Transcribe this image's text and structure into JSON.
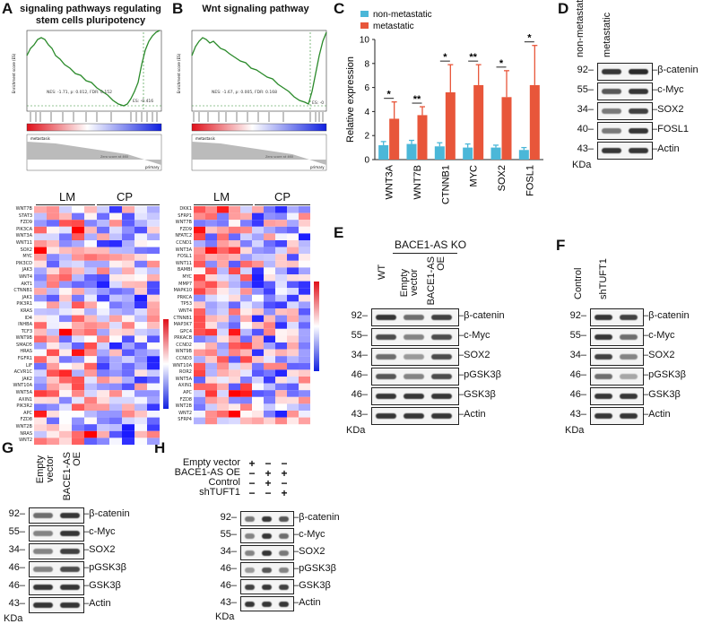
{
  "panels": {
    "A": {
      "letter": "A",
      "title_line1": "signaling pathways regulating",
      "title_line2": "stem cells pluripotency",
      "es_label": "Enrichment score (ES)",
      "stats": "NES: -1.71, p: 0.012, FDR: 0.152",
      "es_value": "ES: -0.416",
      "metastasis_label": "metastasis",
      "primary_label": "primary",
      "zero_label": "Zero score at 460",
      "group_lm": "LM",
      "group_cp": "CP",
      "genes": [
        "WNT7B",
        "STAT3",
        "FZD9",
        "PIK3CA",
        "WNT3A",
        "WNT11",
        "SOX2",
        "MYC",
        "PIK3CD",
        "JAK3",
        "WNT4",
        "AKT1",
        "CTNNB1",
        "JAK1",
        "PIK3R1",
        "KRAS",
        "ID4",
        "INHBA",
        "TCF3",
        "WNT9B",
        "SMAD5",
        "HRAS",
        "FGFR1",
        "LIF",
        "ACVR1C",
        "JAK2",
        "WNT10A",
        "WNT5A",
        "AXIN1",
        "PIK3R2",
        "APC",
        "FZD8",
        "WNT2B",
        "NRAS",
        "WNT2"
      ]
    },
    "B": {
      "letter": "B",
      "title": "Wnt signaling pathway",
      "es_label": "Enrichment score (ES)",
      "stats": "NES: -1.67, p: 0.005, FDR: 0.168",
      "es_value": "ES: -0",
      "metastasis_label": "metastasis",
      "primary_label": "primary",
      "zero_label": "Zero score at 460",
      "group_lm": "LM",
      "group_cp": "CP",
      "genes": [
        "DKK1",
        "SFRP1",
        "WNT7B",
        "FZD9",
        "NFATC2",
        "CCND1",
        "WNT3A",
        "FOSL1",
        "WNT11",
        "BAMBI",
        "MYC",
        "MMP7",
        "MAPK10",
        "PRKCA",
        "TP53",
        "WNT4",
        "CTNNB1",
        "MAP3K7",
        "GPC4",
        "PRKACB",
        "CCND2",
        "WNT9B",
        "CCND3",
        "WNT10A",
        "ROR2",
        "WNT5A",
        "AXIN1",
        "APC",
        "FZD8",
        "WNT2B",
        "WNT2",
        "SFRP4"
      ]
    },
    "C": {
      "letter": "C",
      "legend_non": "non-metastatic",
      "legend_met": "metastatic",
      "ylabel": "Relative expression",
      "color_non": "#4bb7d8",
      "color_met": "#e8563a"
    },
    "D": {
      "letter": "D",
      "lanes": [
        "non-metastatic",
        "metastatic"
      ],
      "mw": [
        "92",
        "55",
        "34",
        "40",
        "43"
      ],
      "proteins": [
        "β-catenin",
        "c-Myc",
        "SOX2",
        "FOSL1",
        "Actin"
      ],
      "kda": "KDa"
    },
    "E": {
      "letter": "E",
      "header": "BACE1-AS KO",
      "lanes": [
        "WT",
        "Empty vector",
        "BACE1-AS OE"
      ],
      "mw": [
        "92",
        "55",
        "34",
        "46",
        "46",
        "43"
      ],
      "proteins": [
        "β-catenin",
        "c-Myc",
        "SOX2",
        "pGSK3β",
        "GSK3β",
        "Actin"
      ],
      "kda": "KDa"
    },
    "F": {
      "letter": "F",
      "lanes": [
        "Control",
        "shTUFT1"
      ],
      "mw": [
        "92",
        "55",
        "34",
        "46",
        "46",
        "43"
      ],
      "proteins": [
        "β-catenin",
        "c-Myc",
        "SOX2",
        "pGSK3β",
        "GSK3β",
        "Actin"
      ],
      "kda": "KDa"
    },
    "G": {
      "letter": "G",
      "lanes": [
        "Empty vector",
        "BACE1-AS OE"
      ],
      "mw": [
        "92",
        "55",
        "34",
        "46",
        "46",
        "43"
      ],
      "proteins": [
        "β-catenin",
        "c-Myc",
        "SOX2",
        "pGSK3β",
        "GSK3β",
        "Actin"
      ],
      "kda": "KDa"
    },
    "H": {
      "letter": "H",
      "conditions": [
        {
          "name": "Empty vector",
          "signs": [
            "+",
            "−",
            "−"
          ]
        },
        {
          "name": "BACE1-AS OE",
          "signs": [
            "−",
            "+",
            "+"
          ]
        },
        {
          "name": "Control",
          "signs": [
            "−",
            "+",
            "−"
          ]
        },
        {
          "name": "shTUFT1",
          "signs": [
            "−",
            "−",
            "+"
          ]
        }
      ],
      "mw": [
        "92",
        "55",
        "34",
        "46",
        "46",
        "43"
      ],
      "proteins": [
        "β-catenin",
        "c-Myc",
        "SOX2",
        "pGSK3β",
        "GSK3β",
        "Actin"
      ],
      "kda": "KDa"
    }
  },
  "chart_data": {
    "type": "bar",
    "title": "",
    "xlabel": "",
    "ylabel": "Relative expression",
    "ylim": [
      0,
      10
    ],
    "yticks": [
      0,
      2,
      4,
      6,
      8,
      10
    ],
    "categories": [
      "WNT3A",
      "WNT7B",
      "CTNNB1",
      "MYC",
      "SOX2",
      "FOSL1"
    ],
    "series": [
      {
        "name": "non-metastatic",
        "values": [
          1.2,
          1.3,
          1.1,
          1.0,
          1.0,
          0.8
        ],
        "errors": [
          0.3,
          0.3,
          0.3,
          0.3,
          0.2,
          0.2
        ]
      },
      {
        "name": "metastatic",
        "values": [
          3.4,
          3.7,
          5.6,
          6.2,
          5.2,
          6.2
        ],
        "errors": [
          1.4,
          0.7,
          2.3,
          1.7,
          2.2,
          3.3
        ]
      }
    ],
    "significance": [
      "*",
      "**",
      "*",
      "**",
      "*",
      "*"
    ],
    "legend": "top"
  }
}
